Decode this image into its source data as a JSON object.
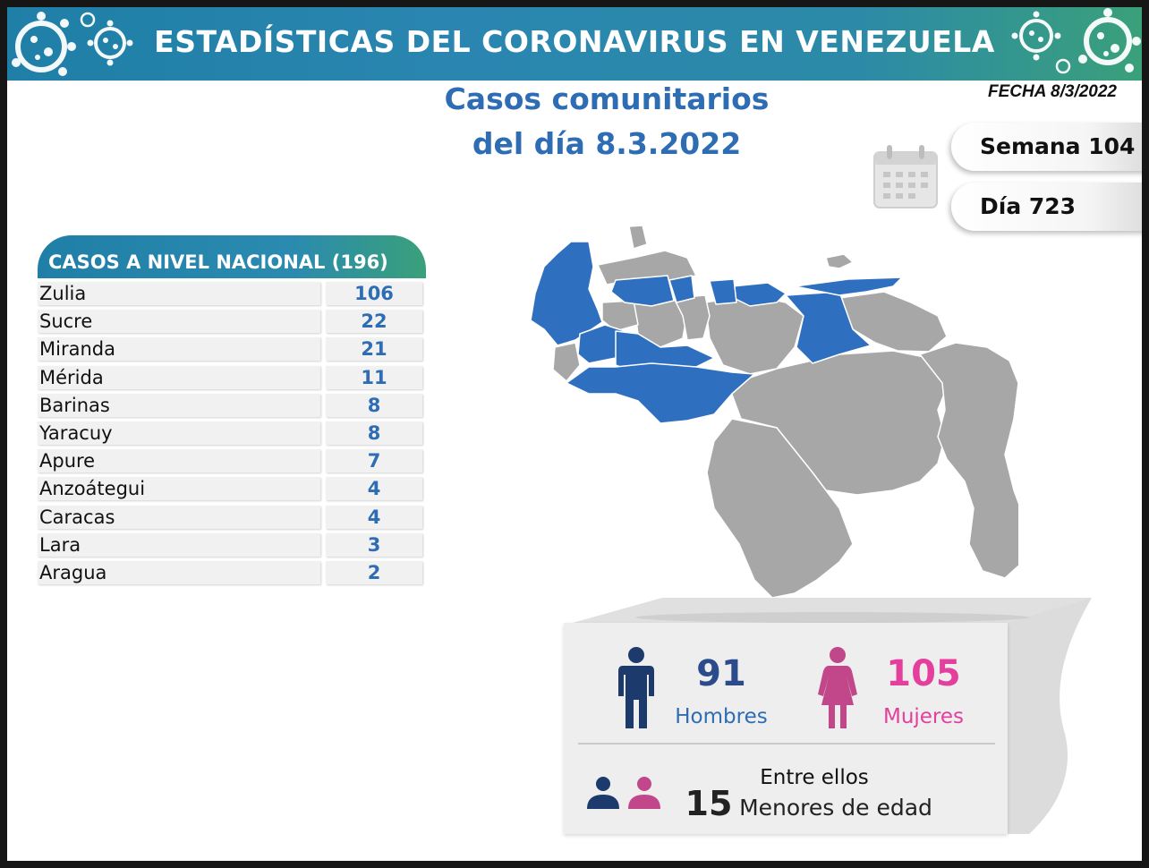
{
  "banner": {
    "title": "ESTADÍSTICAS DEL CORONAVIRUS EN VENEZUELA"
  },
  "header": {
    "title_line1": "Casos comunitarios",
    "title_line2": "del día 8.3.2022",
    "fecha": "FECHA 8/3/2022",
    "semana": "Semana 104",
    "dia": "Día 723"
  },
  "table": {
    "header": "CASOS A NIVEL NACIONAL  (196)",
    "rows": [
      {
        "state": "Zulia",
        "cases": "106"
      },
      {
        "state": "Sucre",
        "cases": "22"
      },
      {
        "state": "Miranda",
        "cases": "21"
      },
      {
        "state": "Mérida",
        "cases": "11"
      },
      {
        "state": "Barinas",
        "cases": "8"
      },
      {
        "state": "Yaracuy",
        "cases": "8"
      },
      {
        "state": "Apure",
        "cases": "7"
      },
      {
        "state": "Anzoátegui",
        "cases": "4"
      },
      {
        "state": "Caracas",
        "cases": "4"
      },
      {
        "state": "Lara",
        "cases": "3"
      },
      {
        "state": "Aragua",
        "cases": "2"
      }
    ]
  },
  "stats": {
    "hombres_count": "91",
    "hombres_label": "Hombres",
    "mujeres_count": "105",
    "mujeres_label": "Mujeres",
    "entre_ellos": "Entre ellos",
    "menores_count": "15",
    "menores_label": "Menores de edad"
  },
  "colors": {
    "title_blue": "#2e6db4",
    "map_highlight": "#2f6fc0",
    "map_gray": "#a7a7a7",
    "male_navy": "#1c3a6b",
    "female_pink": "#e43f9c",
    "female_icon": "#c2478a"
  },
  "icons": {
    "calendar": "calendar-icon",
    "man": "man-icon",
    "woman": "woman-icon",
    "virus": "virus-icon",
    "people": "people-icon"
  }
}
